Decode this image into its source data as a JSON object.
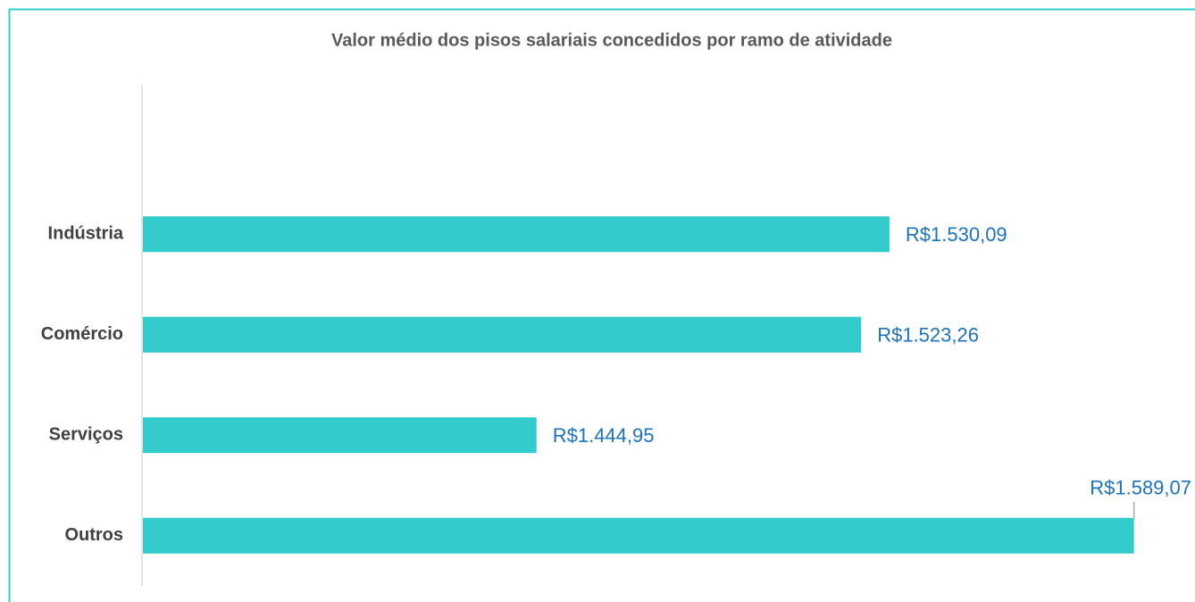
{
  "chart_data": {
    "type": "bar",
    "orientation": "horizontal",
    "title": "Valor médio dos pisos salariais concedidos por ramo de atividade",
    "categories": [
      "Indústria",
      "Comércio",
      "Serviços",
      "Outros"
    ],
    "values": [
      1530.09,
      1523.26,
      1444.95,
      1589.07
    ],
    "value_labels": [
      "R$1.530,09",
      "R$1.523,26",
      "R$1.444,95",
      "R$1.589,07"
    ],
    "color": "#33cccc",
    "xlim": [
      1350,
      1590
    ]
  }
}
